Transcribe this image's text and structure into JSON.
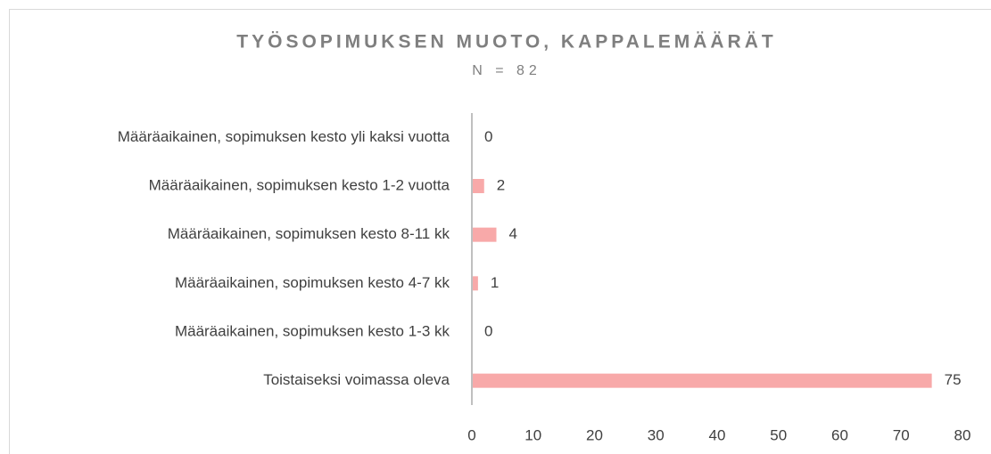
{
  "chart_data": {
    "type": "hbar",
    "title": "TYÖSOPIMUKSEN MUOTO, KAPPALEMÄÄRÄT",
    "subtitle": "N = 82",
    "categories": [
      "Määräaikainen, sopimuksen kesto yli kaksi vuotta",
      "Määräaikainen, sopimuksen kesto 1-2 vuotta",
      "Määräaikainen, sopimuksen kesto 8-11 kk",
      "Määräaikainen, sopimuksen kesto 4-7 kk",
      "Määräaikainen, sopimuksen kesto 1-3 kk",
      "Toistaiseksi voimassa oleva"
    ],
    "values": [
      0,
      2,
      4,
      1,
      0,
      75
    ],
    "color": "#f8a9a9",
    "xlim": [
      0,
      80
    ],
    "xticks": [
      0,
      10,
      20,
      30,
      40,
      50,
      60,
      70,
      80
    ],
    "grid": false
  }
}
